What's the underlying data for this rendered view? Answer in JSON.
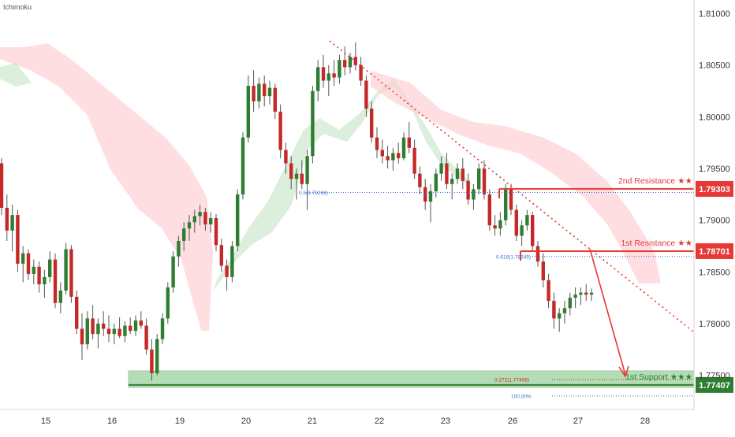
{
  "indicator_label": "Ichimoku",
  "colors": {
    "bull": "#2f7d32",
    "bear": "#c62828",
    "cloud_bull": "#c8e6c9",
    "cloud_bear": "#ffcdd2",
    "resistance": "#e53935",
    "support": "#4caf50",
    "support_dark": "#2e7d32",
    "fib": "#3f6fd1",
    "trendline": "#e53935",
    "axis_text": "#333333"
  },
  "chart_data": {
    "type": "candlestick",
    "x_ticks": [
      "15",
      "16",
      "19",
      "20",
      "21",
      "22",
      "23",
      "26",
      "27",
      "28"
    ],
    "y_ticks": [
      "1.81000",
      "1.80500",
      "1.80000",
      "1.79500",
      "1.79000",
      "1.78500",
      "1.78000",
      "1.77500"
    ],
    "ylim": [
      1.7717,
      1.8113
    ],
    "levels": [
      {
        "name": "2nd Resistance",
        "stars": "★★",
        "price": 1.79303,
        "label": "1.79303"
      },
      {
        "name": "1st Resistance",
        "stars": "★★",
        "price": 1.78701,
        "label": "1.78701"
      },
      {
        "name": "1st Support",
        "stars": "★★★",
        "price": 1.77407,
        "label": "1.77407"
      }
    ],
    "fib_labels": [
      {
        "text": "0.5(1.79268)",
        "price": 1.79268
      },
      {
        "text": "0.618(1.78649)",
        "price": 1.78649
      },
      {
        "text": "0.272(1.77458)",
        "price": 1.77458
      },
      {
        "text": "100.00%",
        "price": 1.773
      }
    ],
    "ohlc": [
      [
        1.7955,
        1.796,
        1.7905,
        1.7912
      ],
      [
        1.7912,
        1.7925,
        1.788,
        1.789
      ],
      [
        1.789,
        1.7915,
        1.787,
        1.7905
      ],
      [
        1.7905,
        1.791,
        1.785,
        1.7858
      ],
      [
        1.7858,
        1.7875,
        1.784,
        1.7868
      ],
      [
        1.7868,
        1.7872,
        1.7842,
        1.7848
      ],
      [
        1.7848,
        1.7862,
        1.7838,
        1.7855
      ],
      [
        1.7855,
        1.786,
        1.783,
        1.7838
      ],
      [
        1.7838,
        1.7852,
        1.7825,
        1.7845
      ],
      [
        1.7845,
        1.787,
        1.784,
        1.7862
      ],
      [
        1.7862,
        1.7868,
        1.7815,
        1.782
      ],
      [
        1.782,
        1.784,
        1.781,
        1.7832
      ],
      [
        1.7832,
        1.7878,
        1.7828,
        1.7872
      ],
      [
        1.7872,
        1.7876,
        1.782,
        1.7826
      ],
      [
        1.7826,
        1.7832,
        1.779,
        1.7795
      ],
      [
        1.7795,
        1.781,
        1.7765,
        1.778
      ],
      [
        1.778,
        1.7812,
        1.7775,
        1.7805
      ],
      [
        1.7805,
        1.7818,
        1.7785,
        1.779
      ],
      [
        1.779,
        1.7805,
        1.7776,
        1.78
      ],
      [
        1.78,
        1.7812,
        1.7788,
        1.7795
      ],
      [
        1.7795,
        1.7808,
        1.7782,
        1.779
      ],
      [
        1.779,
        1.78,
        1.778,
        1.7795
      ],
      [
        1.7795,
        1.7806,
        1.7786,
        1.7788
      ],
      [
        1.7788,
        1.7802,
        1.7782,
        1.7798
      ],
      [
        1.7798,
        1.7806,
        1.779,
        1.7793
      ],
      [
        1.7793,
        1.7808,
        1.7788,
        1.7803
      ],
      [
        1.7803,
        1.7812,
        1.7795,
        1.7798
      ],
      [
        1.7798,
        1.7805,
        1.777,
        1.7775
      ],
      [
        1.7775,
        1.7785,
        1.7745,
        1.7752
      ],
      [
        1.7752,
        1.779,
        1.775,
        1.7785
      ],
      [
        1.7785,
        1.781,
        1.778,
        1.7805
      ],
      [
        1.7805,
        1.784,
        1.78,
        1.7835
      ],
      [
        1.7835,
        1.787,
        1.783,
        1.7865
      ],
      [
        1.7865,
        1.7885,
        1.7855,
        1.788
      ],
      [
        1.788,
        1.7898,
        1.787,
        1.7892
      ],
      [
        1.7892,
        1.7905,
        1.788,
        1.7898
      ],
      [
        1.7898,
        1.791,
        1.7888,
        1.7904
      ],
      [
        1.7904,
        1.7915,
        1.7895,
        1.7908
      ],
      [
        1.7908,
        1.7912,
        1.789,
        1.7896
      ],
      [
        1.7896,
        1.7908,
        1.7888,
        1.7902
      ],
      [
        1.7902,
        1.7906,
        1.787,
        1.7876
      ],
      [
        1.7876,
        1.7882,
        1.785,
        1.7856
      ],
      [
        1.7856,
        1.7862,
        1.7832,
        1.7845
      ],
      [
        1.7845,
        1.788,
        1.784,
        1.7875
      ],
      [
        1.7875,
        1.793,
        1.787,
        1.7925
      ],
      [
        1.7925,
        1.7985,
        1.792,
        1.798
      ],
      [
        1.798,
        1.804,
        1.7975,
        1.803
      ],
      [
        1.803,
        1.8045,
        1.8005,
        1.8015
      ],
      [
        1.8015,
        1.8038,
        1.8008,
        1.8032
      ],
      [
        1.8032,
        1.804,
        1.801,
        1.802
      ],
      [
        1.802,
        1.8035,
        1.8012,
        1.8028
      ],
      [
        1.8028,
        1.8032,
        1.7998,
        1.8005
      ],
      [
        1.8005,
        1.8012,
        1.796,
        1.7968
      ],
      [
        1.7968,
        1.7975,
        1.7945,
        1.7955
      ],
      [
        1.7955,
        1.7962,
        1.793,
        1.794
      ],
      [
        1.794,
        1.795,
        1.792,
        1.7945
      ],
      [
        1.7945,
        1.7958,
        1.793,
        1.7935
      ],
      [
        1.7935,
        1.7968,
        1.791,
        1.7962
      ],
      [
        1.7962,
        1.803,
        1.7955,
        1.8025
      ],
      [
        1.8025,
        1.8055,
        1.8015,
        1.8048
      ],
      [
        1.8048,
        1.806,
        1.8028,
        1.8035
      ],
      [
        1.8035,
        1.805,
        1.802,
        1.8042
      ],
      [
        1.8042,
        1.8055,
        1.803,
        1.8038
      ],
      [
        1.8038,
        1.806,
        1.8032,
        1.8055
      ],
      [
        1.8055,
        1.8068,
        1.804,
        1.8048
      ],
      [
        1.8048,
        1.8062,
        1.8042,
        1.8058
      ],
      [
        1.8058,
        1.8072,
        1.8045,
        1.805
      ],
      [
        1.805,
        1.8058,
        1.803,
        1.8035
      ],
      [
        1.8035,
        1.804,
        1.8,
        1.8008
      ],
      [
        1.8008,
        1.8015,
        1.7975,
        1.798
      ],
      [
        1.798,
        1.799,
        1.796,
        1.7968
      ],
      [
        1.7968,
        1.7978,
        1.7955,
        1.7962
      ],
      [
        1.7962,
        1.7972,
        1.795,
        1.7958
      ],
      [
        1.7958,
        1.797,
        1.7948,
        1.7965
      ],
      [
        1.7965,
        1.7975,
        1.7955,
        1.796
      ],
      [
        1.796,
        1.7985,
        1.7958,
        1.798
      ],
      [
        1.798,
        1.7995,
        1.7965,
        1.797
      ],
      [
        1.797,
        1.7978,
        1.794,
        1.7945
      ],
      [
        1.7945,
        1.7952,
        1.7925,
        1.7932
      ],
      [
        1.7932,
        1.794,
        1.791,
        1.7918
      ],
      [
        1.7918,
        1.7935,
        1.7898,
        1.7928
      ],
      [
        1.7928,
        1.795,
        1.7922,
        1.7945
      ],
      [
        1.7945,
        1.7962,
        1.7938,
        1.7955
      ],
      [
        1.7955,
        1.7965,
        1.793,
        1.7935
      ],
      [
        1.7935,
        1.7945,
        1.792,
        1.794
      ],
      [
        1.794,
        1.7955,
        1.7935,
        1.795
      ],
      [
        1.795,
        1.796,
        1.793,
        1.7938
      ],
      [
        1.7938,
        1.7945,
        1.7915,
        1.792
      ],
      [
        1.792,
        1.7935,
        1.791,
        1.793
      ],
      [
        1.793,
        1.7955,
        1.7925,
        1.795
      ],
      [
        1.795,
        1.7958,
        1.792,
        1.7925
      ],
      [
        1.7925,
        1.793,
        1.789,
        1.7895
      ],
      [
        1.7895,
        1.7905,
        1.7885,
        1.7892
      ],
      [
        1.7892,
        1.7908,
        1.7885,
        1.79
      ],
      [
        1.79,
        1.7935,
        1.7895,
        1.793
      ],
      [
        1.793,
        1.7935,
        1.7905,
        1.791
      ],
      [
        1.791,
        1.7915,
        1.788,
        1.7885
      ],
      [
        1.7885,
        1.79,
        1.7875,
        1.7895
      ],
      [
        1.7895,
        1.791,
        1.789,
        1.7905
      ],
      [
        1.7905,
        1.7908,
        1.787,
        1.7875
      ],
      [
        1.7875,
        1.788,
        1.7855,
        1.786
      ],
      [
        1.786,
        1.7868,
        1.7835,
        1.7842
      ],
      [
        1.7842,
        1.7848,
        1.7815,
        1.7822
      ],
      [
        1.7822,
        1.783,
        1.7795,
        1.7805
      ],
      [
        1.7805,
        1.7815,
        1.7792,
        1.781
      ],
      [
        1.781,
        1.7822,
        1.78,
        1.7815
      ],
      [
        1.7815,
        1.783,
        1.7808,
        1.7825
      ],
      [
        1.7825,
        1.7835,
        1.7815,
        1.7828
      ],
      [
        1.7828,
        1.7835,
        1.7818,
        1.783
      ],
      [
        1.783,
        1.7838,
        1.7822,
        1.7828
      ],
      [
        1.7828,
        1.7834,
        1.7822,
        1.783
      ]
    ]
  }
}
